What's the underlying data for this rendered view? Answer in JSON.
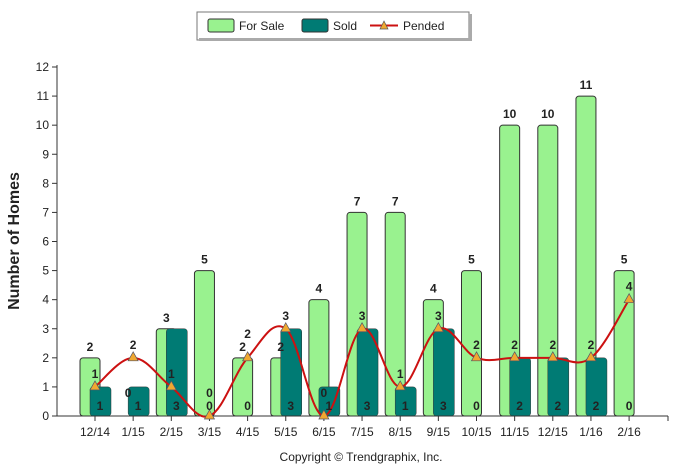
{
  "chart_data": {
    "type": "bar",
    "title": "",
    "xlabel": "",
    "ylabel": "Number of Homes",
    "ylim": [
      0,
      12
    ],
    "yticks": [
      0,
      1,
      2,
      3,
      4,
      5,
      6,
      7,
      8,
      9,
      10,
      11,
      12
    ],
    "categories": [
      "12/14",
      "1/15",
      "2/15",
      "3/15",
      "4/15",
      "5/15",
      "6/15",
      "7/15",
      "8/15",
      "9/15",
      "10/15",
      "11/15",
      "12/15",
      "1/16",
      "2/16"
    ],
    "series": [
      {
        "name": "For Sale",
        "kind": "bar",
        "color": "#99f28f",
        "values": [
          2,
          0,
          3,
          5,
          2,
          2,
          4,
          7,
          7,
          4,
          5,
          10,
          10,
          11,
          5
        ]
      },
      {
        "name": "Sold",
        "kind": "bar",
        "color": "#007b74",
        "values": [
          1,
          1,
          3,
          0,
          0,
          3,
          1,
          3,
          1,
          3,
          0,
          2,
          2,
          2,
          0
        ]
      },
      {
        "name": "Pended",
        "kind": "line",
        "color": "#cc1111",
        "marker_color": "#f0a830",
        "values": [
          1,
          2,
          1,
          0,
          2,
          3,
          0,
          3,
          1,
          3,
          2,
          2,
          2,
          2,
          4
        ]
      }
    ],
    "legend_position": "top-center",
    "grid": false,
    "footer": "Copyright © Trendgraphix, Inc."
  }
}
